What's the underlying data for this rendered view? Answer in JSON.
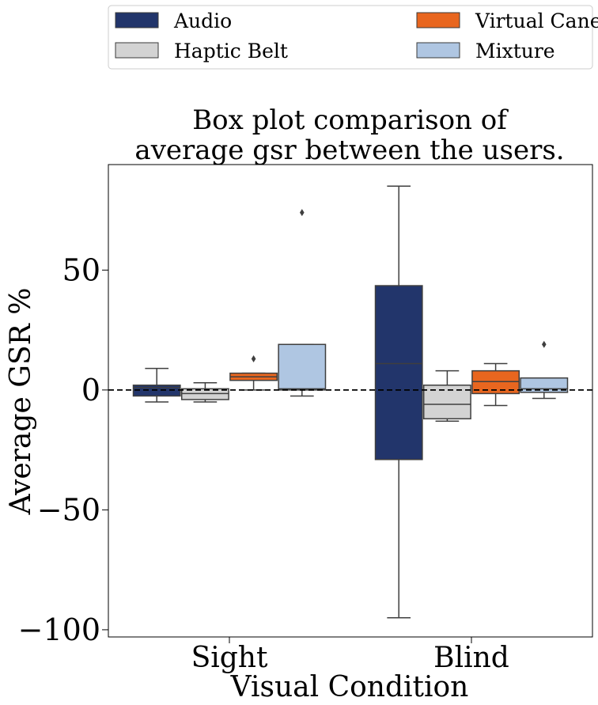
{
  "chart_data": {
    "type": "box",
    "title_lines": [
      "Box plot comparison of",
      "average gsr between the users."
    ],
    "xlabel": "Visual Condition",
    "ylabel": "Average GSR %",
    "categories": [
      "Sight",
      "Blind"
    ],
    "ylim": [
      -103,
      94
    ],
    "yticks": [
      {
        "value": 50,
        "label": "50"
      },
      {
        "value": 0,
        "label": "0"
      },
      {
        "value": -50,
        "label": "−50"
      },
      {
        "value": -100,
        "label": "−100"
      }
    ],
    "reference_line": {
      "value": 0,
      "style": "dashed",
      "color": "#000000"
    },
    "legend_position": "top",
    "series": [
      {
        "name": "Audio",
        "color": "#22356b",
        "boxes": [
          {
            "whislo": -5,
            "q1": -2.5,
            "med": 1,
            "q3": 2,
            "whishi": 9,
            "fliers": []
          },
          {
            "whislo": -95,
            "q1": -29,
            "med": 11,
            "q3": 43.5,
            "whishi": 85,
            "fliers": []
          }
        ]
      },
      {
        "name": "Haptic Belt",
        "color": "#d3d3d3",
        "boxes": [
          {
            "whislo": -5,
            "q1": -4,
            "med": -1.5,
            "q3": 0.5,
            "whishi": 3,
            "fliers": []
          },
          {
            "whislo": -13,
            "q1": -12,
            "med": -6,
            "q3": 2,
            "whishi": 8,
            "fliers": []
          }
        ]
      },
      {
        "name": "Virtual Cane",
        "color": "#e8661f",
        "boxes": [
          {
            "whislo": 0,
            "q1": 4,
            "med": 5.5,
            "q3": 7,
            "whishi": 7,
            "fliers": [
              13
            ]
          },
          {
            "whislo": -6.5,
            "q1": -1.5,
            "med": 3.5,
            "q3": 8,
            "whishi": 11,
            "fliers": []
          }
        ]
      },
      {
        "name": "Mixture",
        "color": "#afc6e2",
        "boxes": [
          {
            "whislo": -2.5,
            "q1": 0,
            "med": 0.5,
            "q3": 19,
            "whishi": 19,
            "fliers": [
              74
            ]
          },
          {
            "whislo": -3.5,
            "q1": -1,
            "med": 0.5,
            "q3": 5,
            "whishi": 5,
            "fliers": [
              19
            ]
          }
        ]
      }
    ]
  }
}
